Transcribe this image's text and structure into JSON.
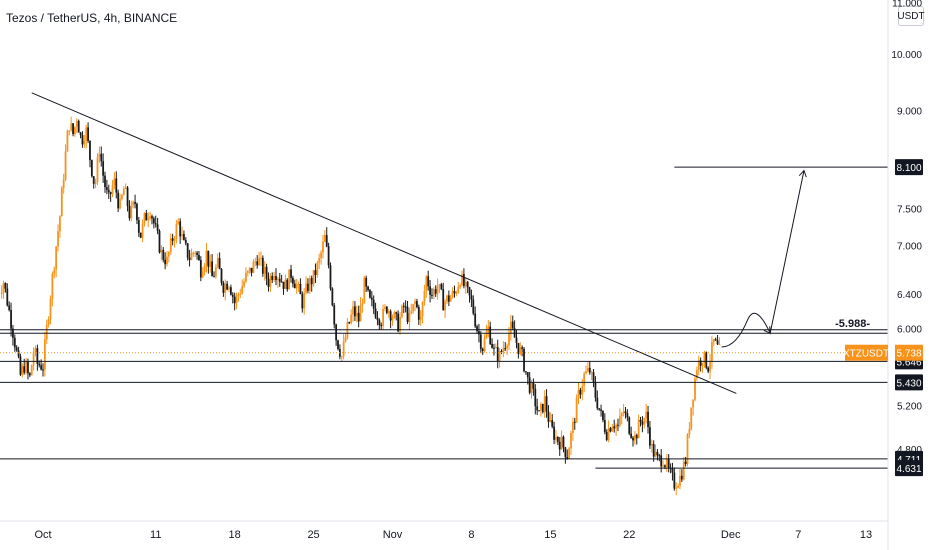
{
  "chart_data": {
    "type": "candlestick",
    "title": "Tezos / TetherUS, 4h, BINANCE",
    "unit_label": "USDT",
    "y_axis": {
      "scale": "log",
      "range": [
        4.3,
        11.3
      ],
      "ticks": [
        {
          "value": 11.0,
          "label": "11.000"
        },
        {
          "value": 10.0,
          "label": "10.000"
        },
        {
          "value": 9.0,
          "label": "9.000"
        },
        {
          "value": 7.5,
          "label": "7.500"
        },
        {
          "value": 7.0,
          "label": "7.000"
        },
        {
          "value": 6.4,
          "label": "6.400"
        },
        {
          "value": 6.0,
          "label": "6.000"
        },
        {
          "value": 5.2,
          "label": "5.200"
        },
        {
          "value": 4.8,
          "label": "4.800"
        }
      ]
    },
    "x_axis": {
      "range_days": [
        -0.4,
        72.5
      ],
      "ticks": [
        {
          "day": 0,
          "label": "Oct"
        },
        {
          "day": 10,
          "label": "11"
        },
        {
          "day": 17,
          "label": "18"
        },
        {
          "day": 24,
          "label": "25"
        },
        {
          "day": 31,
          "label": "Nov"
        },
        {
          "day": 38,
          "label": "8"
        },
        {
          "day": 45,
          "label": "15"
        },
        {
          "day": 52,
          "label": "22"
        },
        {
          "day": 61,
          "label": "Dec"
        },
        {
          "day": 67,
          "label": "7"
        },
        {
          "day": 73,
          "label": "13"
        }
      ]
    },
    "price_path": [
      [
        -4,
        6.4
      ],
      [
        -3.5,
        6.55
      ],
      [
        -3,
        6.2
      ],
      [
        -2.5,
        5.85
      ],
      [
        -2,
        5.5
      ],
      [
        -1.6,
        5.62
      ],
      [
        -1.2,
        5.45
      ],
      [
        -0.8,
        5.78
      ],
      [
        -0.5,
        5.62
      ],
      [
        0,
        5.6
      ],
      [
        0.5,
        6.2
      ],
      [
        1,
        6.8
      ],
      [
        1.5,
        7.4
      ],
      [
        2,
        8.3
      ],
      [
        2.3,
        8.8
      ],
      [
        2.7,
        8.6
      ],
      [
        3,
        8.9
      ],
      [
        3.4,
        8.5
      ],
      [
        3.8,
        8.7
      ],
      [
        4.2,
        8.2
      ],
      [
        4.6,
        7.8
      ],
      [
        5,
        8.4
      ],
      [
        5.4,
        7.9
      ],
      [
        5.8,
        7.6
      ],
      [
        6.3,
        7.9
      ],
      [
        6.8,
        7.5
      ],
      [
        7.2,
        7.8
      ],
      [
        7.7,
        7.4
      ],
      [
        8.2,
        7.6
      ],
      [
        8.6,
        7.1
      ],
      [
        9,
        7.35
      ],
      [
        9.5,
        7.5
      ],
      [
        10,
        7.2
      ],
      [
        10.5,
        6.9
      ],
      [
        11,
        6.8
      ],
      [
        11.5,
        7.1
      ],
      [
        12,
        7.3
      ],
      [
        12.5,
        7.0
      ],
      [
        13,
        6.85
      ],
      [
        13.5,
        6.95
      ],
      [
        14,
        6.7
      ],
      [
        14.5,
        6.9
      ],
      [
        15,
        6.6
      ],
      [
        15.5,
        6.75
      ],
      [
        16,
        6.5
      ],
      [
        16.5,
        6.55
      ],
      [
        17,
        6.3
      ],
      [
        17.5,
        6.45
      ],
      [
        18,
        6.6
      ],
      [
        18.5,
        6.7
      ],
      [
        19,
        6.85
      ],
      [
        19.5,
        6.7
      ],
      [
        20,
        6.55
      ],
      [
        20.5,
        6.7
      ],
      [
        21,
        6.6
      ],
      [
        21.5,
        6.5
      ],
      [
        22,
        6.65
      ],
      [
        22.5,
        6.5
      ],
      [
        23,
        6.3
      ],
      [
        23.5,
        6.5
      ],
      [
        24,
        6.6
      ],
      [
        24.5,
        6.8
      ],
      [
        25,
        7.1
      ],
      [
        25.3,
        6.8
      ],
      [
        25.6,
        6.4
      ],
      [
        26,
        5.9
      ],
      [
        26.5,
        5.7
      ],
      [
        27,
        6.0
      ],
      [
        27.5,
        6.2
      ],
      [
        28,
        6.1
      ],
      [
        28.5,
        6.5
      ],
      [
        29,
        6.3
      ],
      [
        29.5,
        6.2
      ],
      [
        30,
        6.1
      ],
      [
        30.5,
        6.25
      ],
      [
        31,
        6.15
      ],
      [
        31.5,
        6.05
      ],
      [
        32,
        6.25
      ],
      [
        32.5,
        6.1
      ],
      [
        33,
        6.3
      ],
      [
        33.5,
        6.1
      ],
      [
        34,
        6.6
      ],
      [
        34.5,
        6.4
      ],
      [
        35,
        6.5
      ],
      [
        35.5,
        6.3
      ],
      [
        36,
        6.35
      ],
      [
        36.5,
        6.4
      ],
      [
        37,
        6.6
      ],
      [
        37.5,
        6.45
      ],
      [
        38,
        6.3
      ],
      [
        38.5,
        6.0
      ],
      [
        39,
        5.8
      ],
      [
        39.5,
        6.0
      ],
      [
        40,
        5.75
      ],
      [
        40.5,
        5.7
      ],
      [
        41,
        5.85
      ],
      [
        41.5,
        6.0
      ],
      [
        42,
        5.85
      ],
      [
        42.5,
        5.7
      ],
      [
        43,
        5.45
      ],
      [
        43.5,
        5.3
      ],
      [
        44,
        5.1
      ],
      [
        44.5,
        5.25
      ],
      [
        45,
        5.0
      ],
      [
        45.5,
        4.9
      ],
      [
        46,
        4.85
      ],
      [
        46.5,
        4.75
      ],
      [
        47,
        5.0
      ],
      [
        47.5,
        5.3
      ],
      [
        48,
        5.5
      ],
      [
        48.5,
        5.55
      ],
      [
        49,
        5.3
      ],
      [
        49.5,
        5.1
      ],
      [
        50,
        4.95
      ],
      [
        50.5,
        5.05
      ],
      [
        51,
        5.0
      ],
      [
        51.5,
        5.15
      ],
      [
        52,
        5.0
      ],
      [
        52.5,
        4.9
      ],
      [
        53,
        5.05
      ],
      [
        53.5,
        5.1
      ],
      [
        54,
        4.8
      ],
      [
        54.5,
        4.7
      ],
      [
        55,
        4.72
      ],
      [
        55.5,
        4.6
      ],
      [
        56,
        4.5
      ],
      [
        56.5,
        4.55
      ],
      [
        57,
        4.7
      ],
      [
        57.5,
        5.2
      ],
      [
        58,
        5.6
      ],
      [
        58.5,
        5.7
      ],
      [
        59,
        5.6
      ],
      [
        59.5,
        5.85
      ],
      [
        60,
        5.75
      ]
    ],
    "trendline": {
      "from": [
        -1,
        9.3
      ],
      "to": [
        61.5,
        5.32
      ]
    },
    "horizontal_levels": [
      {
        "price": 8.1,
        "label": "8.100",
        "x_from": 56
      },
      {
        "price": 5.988,
        "label": "-5.988-",
        "x_from": -4
      },
      {
        "price": 5.95,
        "label": "",
        "x_from": -4
      },
      {
        "price": 5.646,
        "label": "5.646",
        "x_from": -4
      },
      {
        "price": 5.43,
        "label": "5.430",
        "x_from": -4
      },
      {
        "price": 4.711,
        "label": "4.711",
        "x_from": -4
      },
      {
        "price": 4.631,
        "label": "4.631",
        "x_from": 49
      }
    ],
    "projection_path": [
      [
        60.2,
        5.8
      ],
      [
        61.5,
        5.8
      ],
      [
        62.5,
        6.1
      ],
      [
        63.2,
        6.1
      ],
      [
        64.5,
        5.95
      ],
      [
        67.5,
        8.05
      ]
    ],
    "current_price": {
      "value": 5.738,
      "label": "5.738",
      "symbol": "XTZUSDT"
    },
    "colors": {
      "up": "#f7931a",
      "down": "#1a1a1a",
      "line": "#131722",
      "price_line": "#f7931a",
      "badge": "#f7931a"
    }
  }
}
